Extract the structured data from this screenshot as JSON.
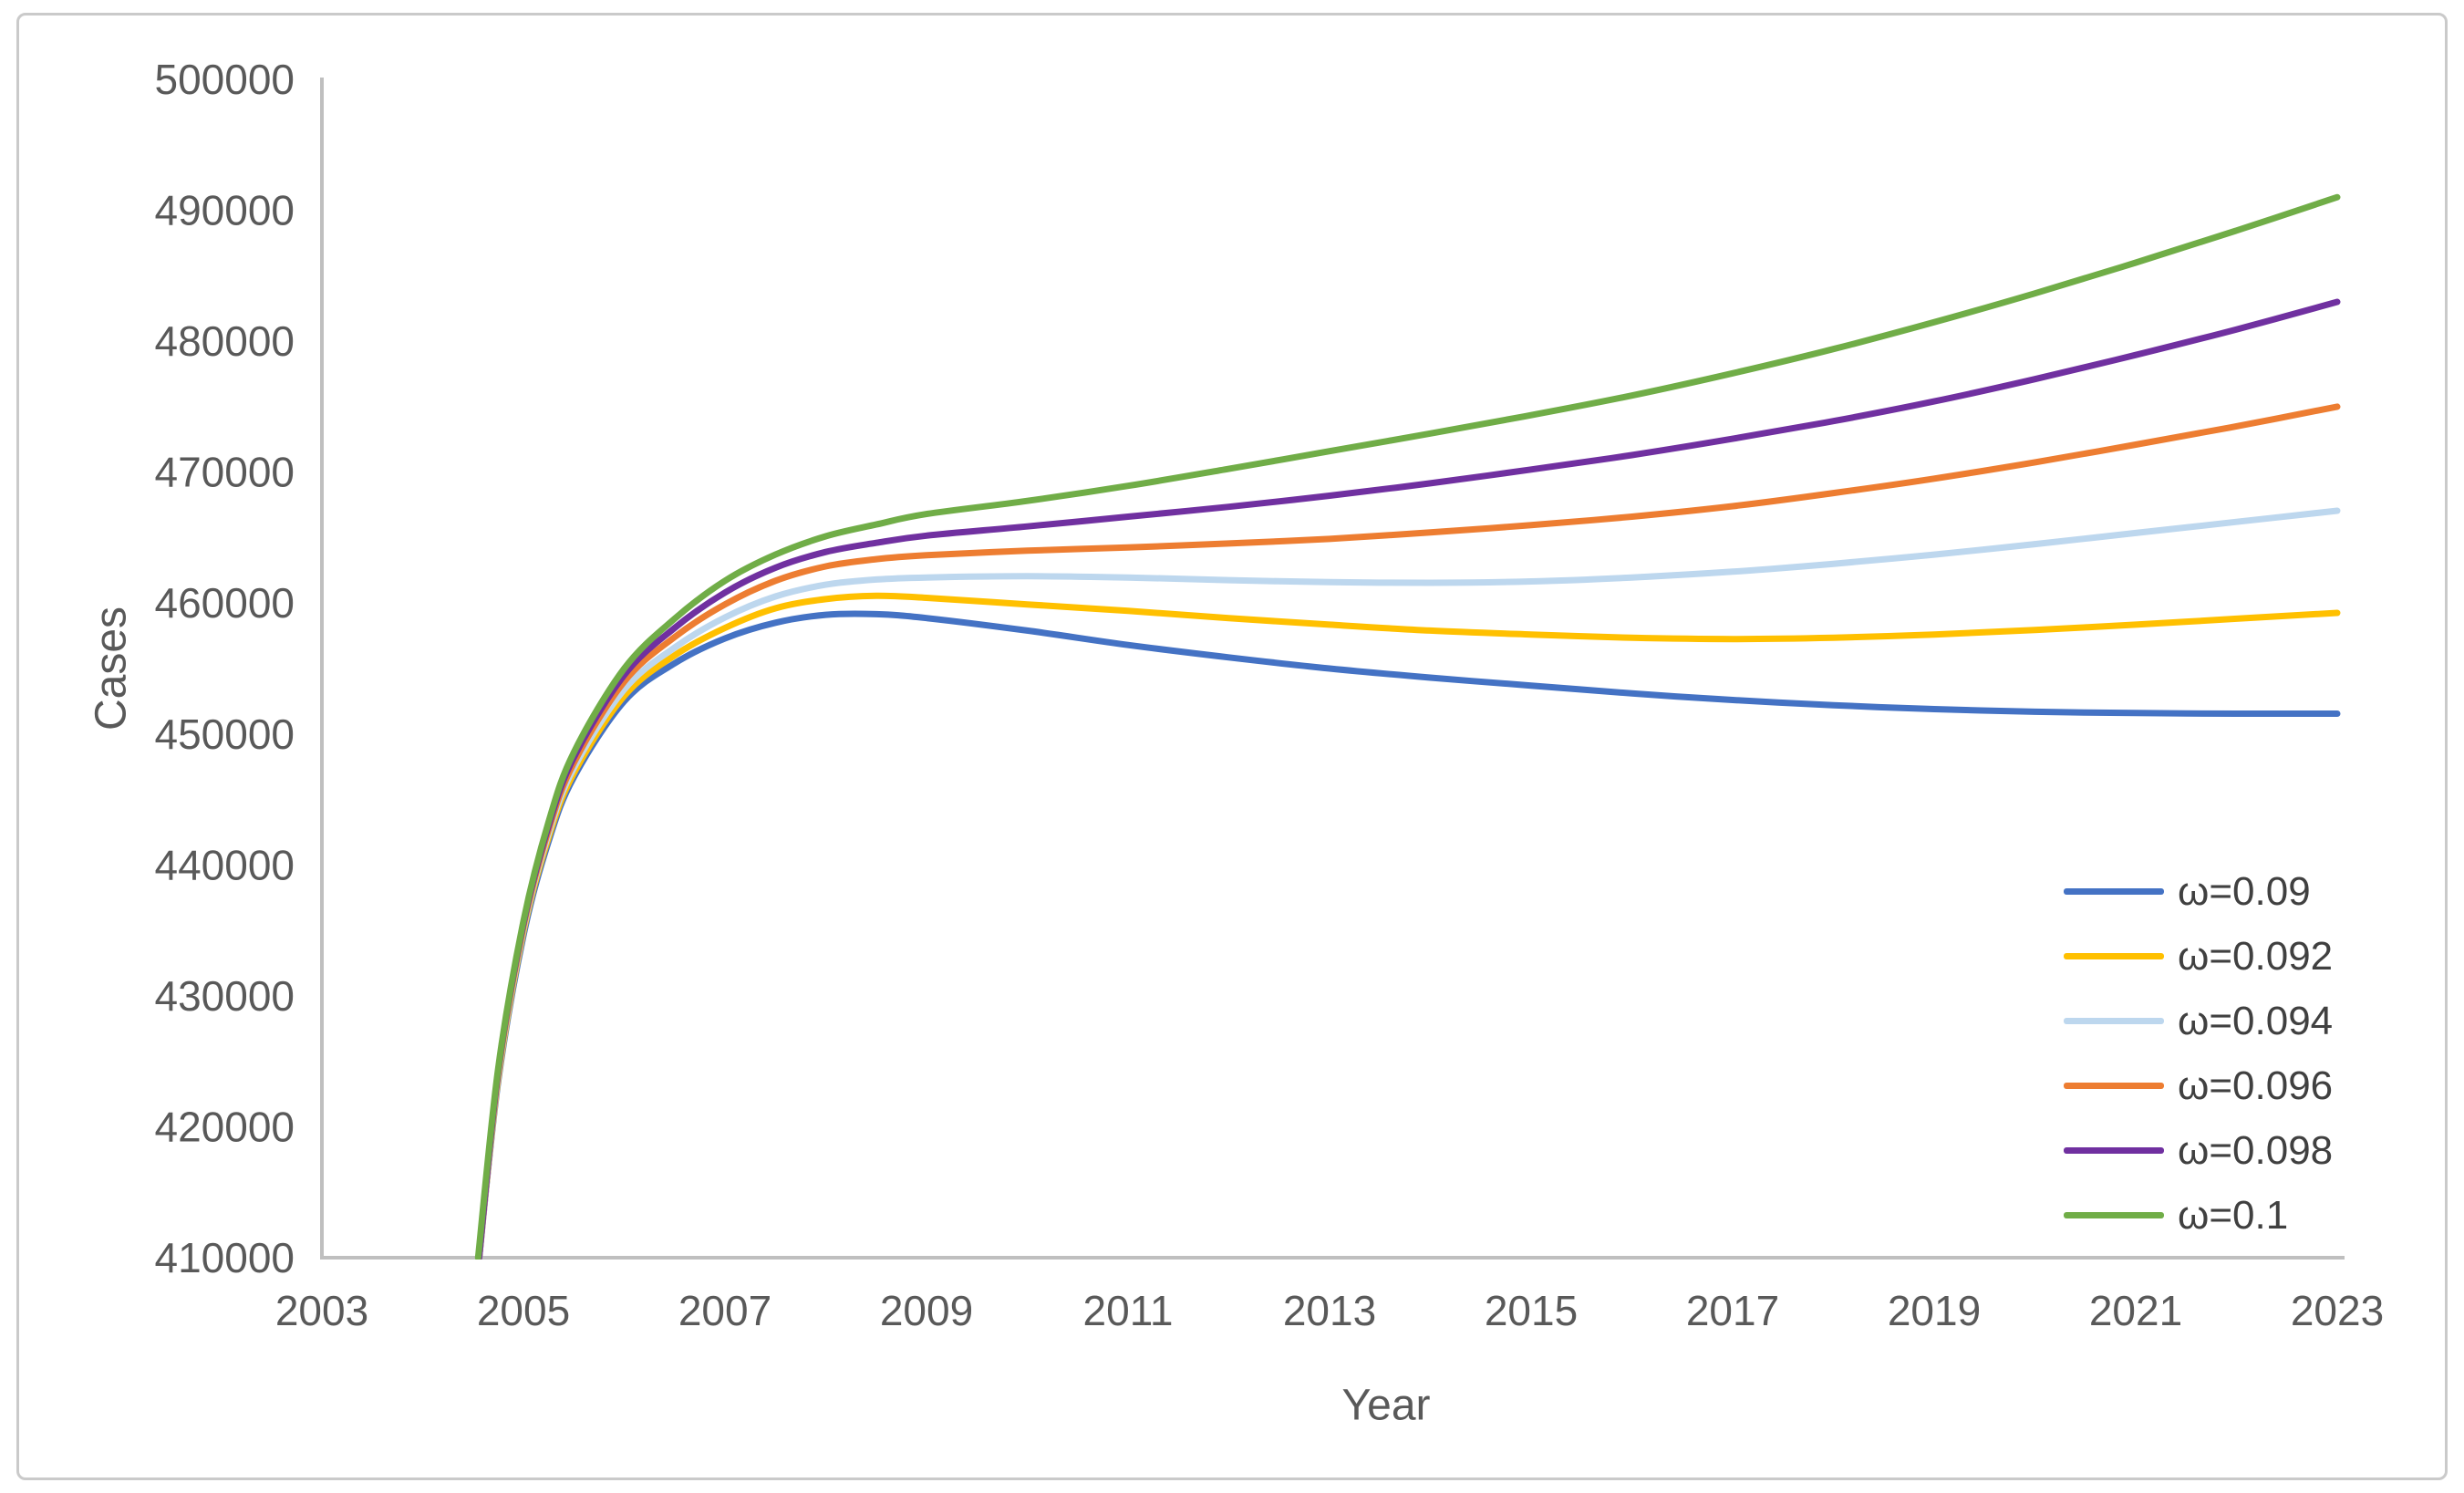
{
  "figure": {
    "border_color": "#cacaca",
    "background": "#ffffff",
    "axis_color": "#bfbfbf",
    "tick_text_color": "#595959",
    "legend_text_color": "#404040"
  },
  "chart_data": {
    "type": "line",
    "title": "",
    "xlabel": "Year",
    "ylabel": "Cases",
    "xlim": [
      2003,
      2023
    ],
    "ylim": [
      410000,
      500000
    ],
    "x_ticks": [
      2003,
      2005,
      2007,
      2009,
      2011,
      2013,
      2015,
      2017,
      2019,
      2021,
      2023
    ],
    "y_ticks": [
      410000,
      420000,
      430000,
      440000,
      450000,
      460000,
      470000,
      480000,
      490000,
      500000
    ],
    "grid": false,
    "legend_position": "bottom-right",
    "series": [
      {
        "label": "ω=0.09",
        "color": "#4472C4",
        "points": [
          [
            2004.56,
            410000
          ],
          [
            2004.75,
            423500
          ],
          [
            2005,
            434600
          ],
          [
            2005.25,
            441800
          ],
          [
            2005.5,
            446700
          ],
          [
            2006,
            452500
          ],
          [
            2006.5,
            455400
          ],
          [
            2007,
            457300
          ],
          [
            2007.5,
            458500
          ],
          [
            2008,
            459100
          ],
          [
            2008.5,
            459150
          ],
          [
            2009,
            458850
          ],
          [
            2010,
            457900
          ],
          [
            2011,
            456800
          ],
          [
            2012,
            455850
          ],
          [
            2013,
            455000
          ],
          [
            2014,
            454300
          ],
          [
            2015,
            453700
          ],
          [
            2016,
            453100
          ],
          [
            2017,
            452600
          ],
          [
            2018,
            452200
          ],
          [
            2019,
            451900
          ],
          [
            2020,
            451700
          ],
          [
            2021,
            451600
          ],
          [
            2022,
            451550
          ],
          [
            2023,
            451550
          ]
        ]
      },
      {
        "label": "ω=0.092",
        "color": "#FFC000",
        "points": [
          [
            2004.56,
            410000
          ],
          [
            2004.75,
            423700
          ],
          [
            2005,
            434900
          ],
          [
            2005.25,
            442100
          ],
          [
            2005.5,
            447000
          ],
          [
            2006,
            452900
          ],
          [
            2006.5,
            456000
          ],
          [
            2007,
            458100
          ],
          [
            2007.5,
            459600
          ],
          [
            2008,
            460300
          ],
          [
            2008.5,
            460550
          ],
          [
            2009,
            460400
          ],
          [
            2010,
            459900
          ],
          [
            2011,
            459400
          ],
          [
            2012,
            458850
          ],
          [
            2013,
            458350
          ],
          [
            2014,
            457900
          ],
          [
            2015,
            457600
          ],
          [
            2016,
            457350
          ],
          [
            2017,
            457250
          ],
          [
            2018,
            457350
          ],
          [
            2019,
            457600
          ],
          [
            2020,
            457950
          ],
          [
            2021,
            458350
          ],
          [
            2022,
            458800
          ],
          [
            2023,
            459250
          ]
        ]
      },
      {
        "label": "ω=0.094",
        "color": "#BDD7EE",
        "points": [
          [
            2004.56,
            410000
          ],
          [
            2004.75,
            423900
          ],
          [
            2005,
            435100
          ],
          [
            2005.25,
            442400
          ],
          [
            2005.5,
            447400
          ],
          [
            2006,
            453400
          ],
          [
            2006.5,
            456600
          ],
          [
            2007,
            458900
          ],
          [
            2007.5,
            460500
          ],
          [
            2008,
            461400
          ],
          [
            2008.5,
            461800
          ],
          [
            2009,
            461950
          ],
          [
            2010,
            462050
          ],
          [
            2011,
            461950
          ],
          [
            2012,
            461750
          ],
          [
            2013,
            461600
          ],
          [
            2014,
            461550
          ],
          [
            2015,
            461650
          ],
          [
            2016,
            461950
          ],
          [
            2017,
            462400
          ],
          [
            2018,
            463000
          ],
          [
            2019,
            463700
          ],
          [
            2020,
            464500
          ],
          [
            2021,
            465350
          ],
          [
            2022,
            466200
          ],
          [
            2023,
            467050
          ]
        ]
      },
      {
        "label": "ω=0.096",
        "color": "#ED7D31",
        "points": [
          [
            2004.56,
            410000
          ],
          [
            2004.75,
            424100
          ],
          [
            2005,
            435300
          ],
          [
            2005.25,
            442700
          ],
          [
            2005.5,
            447800
          ],
          [
            2006,
            454000
          ],
          [
            2006.5,
            457400
          ],
          [
            2007,
            459900
          ],
          [
            2007.5,
            461700
          ],
          [
            2008,
            462800
          ],
          [
            2008.5,
            463350
          ],
          [
            2009,
            463650
          ],
          [
            2010,
            464000
          ],
          [
            2011,
            464250
          ],
          [
            2012,
            464550
          ],
          [
            2013,
            464900
          ],
          [
            2014,
            465400
          ],
          [
            2015,
            465950
          ],
          [
            2016,
            466600
          ],
          [
            2017,
            467400
          ],
          [
            2018,
            468400
          ],
          [
            2019,
            469500
          ],
          [
            2020,
            470750
          ],
          [
            2021,
            472100
          ],
          [
            2022,
            473500
          ],
          [
            2023,
            475000
          ]
        ]
      },
      {
        "label": "ω=0.098",
        "color": "#7030A0",
        "points": [
          [
            2004.56,
            410000
          ],
          [
            2004.75,
            424300
          ],
          [
            2005,
            435500
          ],
          [
            2005.25,
            443000
          ],
          [
            2005.5,
            448200
          ],
          [
            2006,
            454500
          ],
          [
            2006.5,
            458100
          ],
          [
            2007,
            460800
          ],
          [
            2007.5,
            462700
          ],
          [
            2008,
            463900
          ],
          [
            2008.5,
            464600
          ],
          [
            2009,
            465150
          ],
          [
            2010,
            465850
          ],
          [
            2011,
            466600
          ],
          [
            2012,
            467350
          ],
          [
            2013,
            468200
          ],
          [
            2014,
            469150
          ],
          [
            2015,
            470200
          ],
          [
            2016,
            471300
          ],
          [
            2017,
            472550
          ],
          [
            2018,
            473900
          ],
          [
            2019,
            475400
          ],
          [
            2020,
            477100
          ],
          [
            2021,
            478950
          ],
          [
            2022,
            480900
          ],
          [
            2023,
            483000
          ]
        ]
      },
      {
        "label": "ω=0.1",
        "color": "#70AD47",
        "points": [
          [
            2004.55,
            410000
          ],
          [
            2004.75,
            424500
          ],
          [
            2005,
            435700
          ],
          [
            2005.25,
            443300
          ],
          [
            2005.5,
            448600
          ],
          [
            2006,
            455000
          ],
          [
            2006.5,
            458800
          ],
          [
            2007,
            461700
          ],
          [
            2007.5,
            463700
          ],
          [
            2008,
            465100
          ],
          [
            2008.5,
            466000
          ],
          [
            2009,
            466800
          ],
          [
            2010,
            467800
          ],
          [
            2011,
            468950
          ],
          [
            2012,
            470250
          ],
          [
            2013,
            471600
          ],
          [
            2014,
            472950
          ],
          [
            2015,
            474350
          ],
          [
            2016,
            475850
          ],
          [
            2017,
            477550
          ],
          [
            2018,
            479400
          ],
          [
            2019,
            481450
          ],
          [
            2020,
            483650
          ],
          [
            2021,
            486000
          ],
          [
            2022,
            488450
          ],
          [
            2023,
            491000
          ]
        ]
      }
    ]
  }
}
